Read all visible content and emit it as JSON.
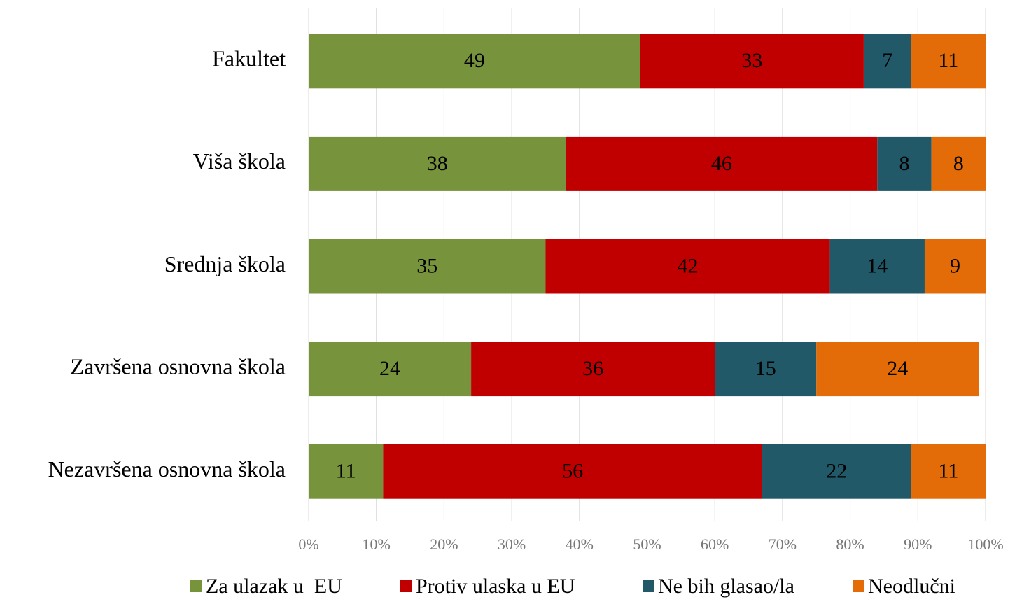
{
  "chart_data": {
    "type": "stacked-barh",
    "categories": [
      "Fakultet",
      "Viša škola",
      "Srednja škola",
      "Završena osnovna škola",
      "Nezavršena osnovna škola"
    ],
    "series": [
      {
        "name": "Za ulazak u  EU",
        "color": "#77933c",
        "values": [
          49,
          38,
          35,
          24,
          11
        ]
      },
      {
        "name": "Protiv ulaska u EU",
        "color": "#c00000",
        "values": [
          33,
          46,
          42,
          36,
          56
        ]
      },
      {
        "name": "Ne bih glasao/la",
        "color": "#215968",
        "values": [
          7,
          8,
          14,
          15,
          22
        ]
      },
      {
        "name": "Neodlučni",
        "color": "#e36c09",
        "values": [
          11,
          8,
          9,
          24,
          11
        ]
      }
    ],
    "xlim": [
      0,
      100
    ],
    "xticks": [
      {
        "value": 0,
        "label": "0%"
      },
      {
        "value": 10,
        "label": "10%"
      },
      {
        "value": 20,
        "label": "20%"
      },
      {
        "value": 30,
        "label": "30%"
      },
      {
        "value": 40,
        "label": "40%"
      },
      {
        "value": 50,
        "label": "50%"
      },
      {
        "value": 60,
        "label": "60%"
      },
      {
        "value": 70,
        "label": "70%"
      },
      {
        "value": 80,
        "label": "80%"
      },
      {
        "value": 90,
        "label": "90%"
      },
      {
        "value": 100,
        "label": "100%"
      }
    ],
    "grid": true,
    "legend": "bottom"
  }
}
